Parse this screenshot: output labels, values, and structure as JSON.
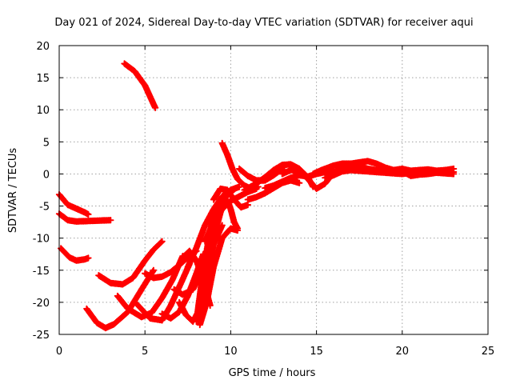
{
  "chart_data": {
    "type": "scatter",
    "title": "Day 021 of 2024, Sidereal Day-to-day VTEC variation (SDTVAR) for receiver aqui",
    "xlabel": "GPS time / hours",
    "ylabel": "SDTVAR / TECUs",
    "xlim": [
      0,
      25
    ],
    "ylim": [
      -25,
      20
    ],
    "xticks": [
      "0",
      "5",
      "10",
      "15",
      "20",
      "25"
    ],
    "yticks": [
      "20",
      "15",
      "10",
      "5",
      "0",
      "-5",
      "-10",
      "-15",
      "-20",
      "-25"
    ],
    "xtick_values": [
      0,
      5,
      10,
      15,
      20,
      25
    ],
    "ytick_values": [
      20,
      15,
      10,
      5,
      0,
      -5,
      -10,
      -15,
      -20,
      -25
    ],
    "grid": true,
    "marker": "plus",
    "color": "#ff0000",
    "series": [
      {
        "name": "s1",
        "x": [
          0.0,
          0.5,
          1.0,
          1.5,
          1.7
        ],
        "y": [
          -3.2,
          -4.8,
          -5.4,
          -6.0,
          -6.3
        ]
      },
      {
        "name": "s2",
        "x": [
          0.0,
          0.5,
          1.0,
          2.0,
          3.0
        ],
        "y": [
          -6.2,
          -7.2,
          -7.4,
          -7.3,
          -7.2
        ]
      },
      {
        "name": "s3",
        "x": [
          0.1,
          0.6,
          1.0,
          1.5,
          1.7
        ],
        "y": [
          -11.6,
          -13.0,
          -13.5,
          -13.3,
          -13.1
        ]
      },
      {
        "name": "s4",
        "x": [
          3.8,
          4.4,
          5.0,
          5.6
        ],
        "y": [
          17.2,
          16.0,
          13.8,
          10.3
        ]
      },
      {
        "name": "s5",
        "x": [
          1.6,
          2.2,
          2.7,
          3.2,
          4.0,
          4.8,
          5.5
        ],
        "y": [
          -21.0,
          -23.2,
          -24.0,
          -23.4,
          -21.5,
          -18.0,
          -15.0
        ]
      },
      {
        "name": "s6",
        "x": [
          2.3,
          3.0,
          3.7,
          4.3,
          5.0,
          5.5,
          6.0
        ],
        "y": [
          -15.8,
          -17.0,
          -17.2,
          -16.2,
          -13.5,
          -11.8,
          -10.5
        ]
      },
      {
        "name": "s7",
        "x": [
          3.4,
          4.0,
          4.8,
          5.4,
          6.0,
          6.6,
          7.2
        ],
        "y": [
          -19.0,
          -21.0,
          -22.3,
          -21.6,
          -19.3,
          -16.5,
          -12.8
        ]
      },
      {
        "name": "s8",
        "x": [
          4.5,
          5.3,
          6.0,
          6.5,
          7.1,
          7.6
        ],
        "y": [
          -20.2,
          -22.5,
          -22.8,
          -20.5,
          -17.0,
          -14.0
        ]
      },
      {
        "name": "s9",
        "x": [
          5.0,
          5.5,
          6.0,
          6.5,
          7.0,
          7.5,
          8.0
        ],
        "y": [
          -15.5,
          -16.2,
          -16.0,
          -15.3,
          -14.2,
          -13.0,
          -12.0
        ]
      },
      {
        "name": "s10",
        "x": [
          6.0,
          6.5,
          7.0,
          7.5,
          8.0,
          8.4
        ],
        "y": [
          -21.8,
          -22.5,
          -21.5,
          -19.0,
          -15.5,
          -12.5
        ]
      },
      {
        "name": "s11",
        "x": [
          6.7,
          7.2,
          7.8,
          8.3,
          8.8
        ],
        "y": [
          -18.0,
          -18.8,
          -18.0,
          -15.0,
          -11.0
        ]
      },
      {
        "name": "s12",
        "x": [
          7.0,
          7.4,
          7.8,
          8.2,
          8.6,
          9.0,
          9.5
        ],
        "y": [
          -20.0,
          -22.0,
          -23.0,
          -21.0,
          -16.0,
          -11.0,
          -8.0
        ]
      },
      {
        "name": "s13",
        "x": [
          7.2,
          7.6,
          8.0,
          8.4,
          8.8
        ],
        "y": [
          -13.0,
          -12.0,
          -13.5,
          -16.5,
          -20.5
        ]
      },
      {
        "name": "s14",
        "x": [
          7.5,
          8.0,
          8.5,
          9.0,
          9.5,
          10.0,
          10.5
        ],
        "y": [
          -14.5,
          -11.5,
          -8.0,
          -5.5,
          -3.5,
          -2.5,
          -2.0
        ]
      },
      {
        "name": "s15",
        "x": [
          8.0,
          8.3,
          8.6,
          8.9,
          9.3,
          9.7,
          10.1
        ],
        "y": [
          -23.0,
          -17.0,
          -12.0,
          -7.5,
          -5.0,
          -3.6,
          -2.7
        ]
      },
      {
        "name": "s16",
        "x": [
          8.2,
          8.6,
          9.0,
          9.5,
          10.0,
          10.4
        ],
        "y": [
          -23.5,
          -20.0,
          -14.5,
          -10.0,
          -8.5,
          -8.8
        ]
      },
      {
        "name": "s17",
        "x": [
          8.5,
          9.0,
          9.5,
          10.0,
          10.5,
          11.0,
          11.5
        ],
        "y": [
          -10.5,
          -7.5,
          -5.5,
          -4.2,
          -3.5,
          -2.8,
          -2.3
        ]
      },
      {
        "name": "s18",
        "x": [
          8.8,
          9.2,
          9.5,
          9.8,
          10.0,
          10.2,
          10.4
        ],
        "y": [
          -12.5,
          -8.0,
          -5.0,
          -4.0,
          -5.5,
          -7.5,
          -8.5
        ]
      },
      {
        "name": "s19",
        "x": [
          9.0,
          9.4,
          9.8,
          10.2,
          10.6,
          11.0
        ],
        "y": [
          -4.0,
          -2.3,
          -2.5,
          -4.0,
          -5.2,
          -4.8
        ]
      },
      {
        "name": "s20",
        "x": [
          9.5,
          9.8,
          10.1,
          10.4,
          10.8,
          11.2,
          11.6
        ],
        "y": [
          4.8,
          3.0,
          0.8,
          -0.8,
          -1.8,
          -2.3,
          -2.0
        ]
      },
      {
        "name": "s21",
        "x": [
          10.5,
          11.0,
          11.5,
          12.0,
          12.5,
          13.0
        ],
        "y": [
          0.8,
          -0.3,
          -1.0,
          -1.0,
          -0.2,
          0.8
        ]
      },
      {
        "name": "s22",
        "x": [
          11.0,
          11.5,
          12.0,
          12.5,
          13.0,
          13.5,
          14.0
        ],
        "y": [
          -4.0,
          -3.6,
          -3.0,
          -2.2,
          -1.4,
          -1.0,
          -1.4
        ]
      },
      {
        "name": "s23",
        "x": [
          10.8,
          11.5,
          12.0,
          12.5,
          13.0,
          13.5,
          14.0,
          14.5,
          14.8
        ],
        "y": [
          -2.5,
          -1.5,
          -0.5,
          0.6,
          1.4,
          1.5,
          0.8,
          -0.5,
          -2.0
        ]
      },
      {
        "name": "s24",
        "x": [
          12.0,
          12.5,
          13.0,
          13.5,
          14.0,
          14.5,
          15.0,
          15.5,
          16.0
        ],
        "y": [
          -2.2,
          -1.8,
          -1.2,
          -0.6,
          -0.2,
          -0.4,
          0.0,
          0.3,
          0.5
        ]
      },
      {
        "name": "s25",
        "x": [
          13.0,
          13.5,
          14.0,
          14.5,
          15.0,
          15.5,
          16.0,
          16.5,
          17.0,
          17.5,
          18.0,
          18.5,
          19.0
        ],
        "y": [
          0.0,
          0.6,
          0.5,
          -0.8,
          -2.3,
          -1.5,
          0.2,
          1.2,
          1.5,
          1.2,
          0.8,
          0.6,
          0.5
        ]
      },
      {
        "name": "s26",
        "x": [
          14.8,
          15.3,
          16.0,
          16.5,
          17.0,
          17.5,
          18.0,
          18.5,
          19.0,
          19.5,
          20.0
        ],
        "y": [
          0.0,
          0.6,
          1.3,
          1.6,
          1.6,
          1.8,
          2.0,
          1.6,
          1.0,
          0.6,
          0.6
        ]
      },
      {
        "name": "s27",
        "x": [
          15.5,
          16.0,
          16.5,
          17.0,
          17.5,
          18.0,
          18.5,
          19.0,
          19.5,
          20.0,
          20.5,
          21.0,
          21.5,
          22.0,
          22.5,
          23.0
        ],
        "y": [
          -0.6,
          -0.2,
          0.4,
          0.6,
          0.5,
          0.4,
          0.3,
          0.2,
          0.1,
          0.0,
          0.2,
          0.1,
          0.3,
          0.2,
          0.4,
          0.3
        ]
      },
      {
        "name": "s28",
        "x": [
          18.0,
          18.5,
          19.0,
          19.5,
          20.0,
          20.5,
          21.0,
          21.5,
          22.0,
          22.5,
          23.0
        ],
        "y": [
          0.5,
          0.3,
          0.4,
          0.6,
          0.8,
          0.5,
          0.6,
          0.7,
          0.5,
          0.6,
          0.8
        ]
      },
      {
        "name": "s29",
        "x": [
          19.5,
          20.0,
          20.5,
          21.0,
          21.5,
          22.0,
          22.5,
          23.0
        ],
        "y": [
          0.2,
          0.4,
          -0.3,
          -0.1,
          0.0,
          0.2,
          0.1,
          0.0
        ]
      }
    ]
  }
}
